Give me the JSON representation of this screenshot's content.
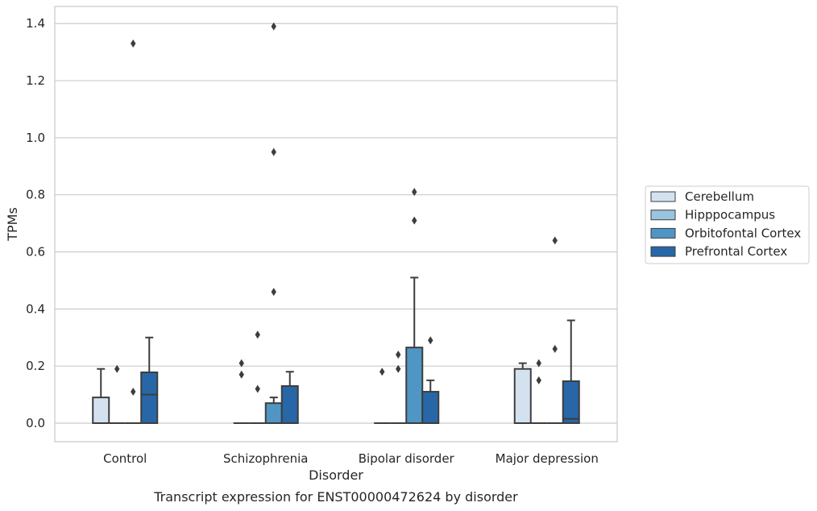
{
  "chart_data": {
    "type": "box",
    "title": "",
    "caption": "Transcript expression for ENST00000472624 by disorder",
    "xlabel": "Disorder",
    "ylabel": "TPMs",
    "ylim": [
      -0.065,
      1.46
    ],
    "yticks": [
      0.0,
      0.2,
      0.4,
      0.6,
      0.8,
      1.0,
      1.2,
      1.4
    ],
    "ytick_labels": [
      "0.0",
      "0.2",
      "0.4",
      "0.6",
      "0.8",
      "1.0",
      "1.2",
      "1.4"
    ],
    "grid": "horizontal",
    "legend_position": "right",
    "categories": [
      "Control",
      "Schizophrenia",
      "Bipolar disorder",
      "Major depression"
    ],
    "series": [
      {
        "name": "Cerebellum",
        "color": "#d4e2f0",
        "boxes": [
          {
            "q1": 0,
            "median": 0,
            "q3": 0.09,
            "whisker_low": 0,
            "whisker_high": 0.19,
            "outliers": []
          },
          {
            "q1": 0,
            "median": 0,
            "q3": 0,
            "whisker_low": 0,
            "whisker_high": 0,
            "outliers": []
          },
          {
            "q1": 0,
            "median": 0,
            "q3": 0,
            "whisker_low": 0,
            "whisker_high": 0,
            "outliers": [
              0.18
            ]
          },
          {
            "q1": 0,
            "median": 0,
            "q3": 0.19,
            "whisker_low": 0,
            "whisker_high": 0.21,
            "outliers": []
          }
        ]
      },
      {
        "name": "Hipppocampus",
        "color": "#9ac3de",
        "boxes": [
          {
            "q1": 0,
            "median": 0,
            "q3": 0,
            "whisker_low": 0,
            "whisker_high": 0,
            "outliers": [
              0.19
            ]
          },
          {
            "q1": 0,
            "median": 0,
            "q3": 0,
            "whisker_low": 0,
            "whisker_high": 0,
            "outliers": [
              0.31,
              0.12
            ]
          },
          {
            "q1": 0,
            "median": 0,
            "q3": 0,
            "whisker_low": 0,
            "whisker_high": 0,
            "outliers": [
              0.24,
              0.19
            ]
          },
          {
            "q1": 0,
            "median": 0,
            "q3": 0,
            "whisker_low": 0,
            "whisker_high": 0,
            "outliers": [
              0.21,
              0.15
            ]
          }
        ]
      },
      {
        "name": "Orbitofontal Cortex",
        "color": "#5096c5",
        "boxes": [
          {
            "q1": 0,
            "median": 0,
            "q3": 0,
            "whisker_low": 0,
            "whisker_high": 0,
            "outliers": [
              1.33,
              0.11
            ]
          },
          {
            "q1": 0,
            "median": 0,
            "q3": 0.07,
            "whisker_low": 0,
            "whisker_high": 0.09,
            "outliers": [
              1.39,
              0.95,
              0.46
            ]
          },
          {
            "q1": 0,
            "median": 0,
            "q3": 0.265,
            "whisker_low": 0,
            "whisker_high": 0.51,
            "outliers": [
              0.81,
              0.71
            ]
          },
          {
            "q1": 0,
            "median": 0,
            "q3": 0,
            "whisker_low": 0,
            "whisker_high": 0,
            "outliers": [
              0.64,
              0.26
            ]
          }
        ]
      },
      {
        "name": "Prefrontal Cortex",
        "color": "#2767a8",
        "boxes": [
          {
            "q1": 0,
            "median": 0.1,
            "q3": 0.178,
            "whisker_low": 0,
            "whisker_high": 0.3,
            "outliers": []
          },
          {
            "q1": 0,
            "median": 0,
            "q3": 0.13,
            "whisker_low": 0,
            "whisker_high": 0.18,
            "outliers": []
          },
          {
            "q1": 0,
            "median": 0,
            "q3": 0.11,
            "whisker_low": 0,
            "whisker_high": 0.15,
            "outliers": [
              0.29
            ]
          },
          {
            "q1": 0,
            "median": 0.015,
            "q3": 0.147,
            "whisker_low": 0,
            "whisker_high": 0.36,
            "outliers": []
          }
        ]
      }
    ],
    "extra_outliers": [
      {
        "category": 1,
        "series": 0,
        "values": [
          0.21,
          0.17
        ]
      }
    ]
  }
}
